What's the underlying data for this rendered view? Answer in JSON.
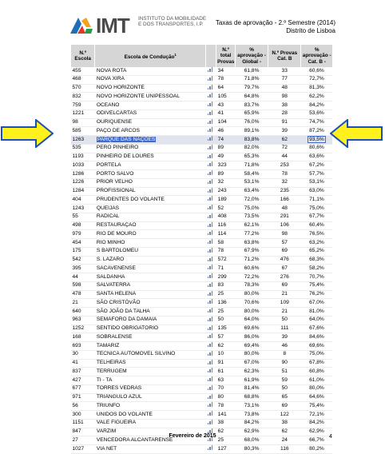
{
  "logo": {
    "text": "IMT",
    "subtitle": "INSTITUTO DA MOBILIDADE E DOS TRANSPORTES, I.P."
  },
  "header": {
    "line1": "Taxas de aprovação - 2.º Semestre (2014)",
    "line2": "Distrito de Lisboa"
  },
  "columns": {
    "num": "N.º Escola",
    "name": "Escola de Condução",
    "name_sup": "1",
    "total": "N.º total Provas",
    "apr": "% aprovação - Global -",
    "catb": "N.º Provas Cat. B",
    "pcb": "% aprovação - Cat. B -"
  },
  "rows": [
    {
      "num": "455",
      "name": "NOVA ROTA",
      "total": "34",
      "apr": "61,8%",
      "catb": "33",
      "pcb": "60,6%"
    },
    {
      "num": "468",
      "name": "NOVA XIRA",
      "total": "78",
      "apr": "71,8%",
      "catb": "77",
      "pcb": "72,7%"
    },
    {
      "num": "570",
      "name": "NOVO HORIZONTE",
      "total": "64",
      "apr": "79,7%",
      "catb": "48",
      "pcb": "81,3%"
    },
    {
      "num": "832",
      "name": "NOVO HORIZONTE UNIPESSOAL",
      "total": "105",
      "apr": "64,8%",
      "catb": "98",
      "pcb": "62,2%"
    },
    {
      "num": "759",
      "name": "OCEANO",
      "total": "43",
      "apr": "83,7%",
      "catb": "38",
      "pcb": "84,2%"
    },
    {
      "num": "1221",
      "name": "ODIVELCARTAS",
      "total": "41",
      "apr": "65,9%",
      "catb": "28",
      "pcb": "53,6%"
    },
    {
      "num": "98",
      "name": "OURIQUENSE",
      "total": "104",
      "apr": "76,0%",
      "catb": "91",
      "pcb": "74,7%"
    },
    {
      "num": "585",
      "name": "PAÇO DE ARCOS",
      "total": "46",
      "apr": "89,1%",
      "catb": "39",
      "pcb": "87,2%"
    },
    {
      "num": "1263",
      "name": "PARQUE DAS NAÇÕES",
      "total": "74",
      "apr": "83,8%",
      "catb": "62",
      "pcb": "93,5%",
      "highlight": true
    },
    {
      "num": "535",
      "name": "PERO PINHEIRO",
      "total": "89",
      "apr": "82,0%",
      "catb": "72",
      "pcb": "80,6%"
    },
    {
      "num": "1193",
      "name": "PINHEIRO DE LOURES",
      "total": "49",
      "apr": "65,3%",
      "catb": "44",
      "pcb": "63,6%"
    },
    {
      "num": "1033",
      "name": "PORTELA",
      "total": "323",
      "apr": "71,8%",
      "catb": "253",
      "pcb": "67,2%"
    },
    {
      "num": "1286",
      "name": "PORTO SALVO",
      "total": "89",
      "apr": "58,4%",
      "catb": "78",
      "pcb": "57,7%"
    },
    {
      "num": "1226",
      "name": "PRIOR VELHO",
      "total": "32",
      "apr": "53,1%",
      "catb": "32",
      "pcb": "53,1%"
    },
    {
      "num": "1284",
      "name": "PROFISSIONAL",
      "total": "243",
      "apr": "63,4%",
      "catb": "235",
      "pcb": "63,0%"
    },
    {
      "num": "404",
      "name": "PRUDENTES DO VOLANTE",
      "total": "189",
      "apr": "72,0%",
      "catb": "166",
      "pcb": "71,1%"
    },
    {
      "num": "1243",
      "name": "QUEIJAS",
      "total": "52",
      "apr": "75,0%",
      "catb": "48",
      "pcb": "75,0%"
    },
    {
      "num": "55",
      "name": "RADICAL",
      "total": "408",
      "apr": "73,5%",
      "catb": "291",
      "pcb": "67,7%"
    },
    {
      "num": "498",
      "name": "RESTAURAÇÃO",
      "total": "116",
      "apr": "62,1%",
      "catb": "106",
      "pcb": "60,4%"
    },
    {
      "num": "979",
      "name": "RIO DE MOURO",
      "total": "114",
      "apr": "77,2%",
      "catb": "98",
      "pcb": "76,5%"
    },
    {
      "num": "454",
      "name": "RIO MINHO",
      "total": "58",
      "apr": "63,8%",
      "catb": "57",
      "pcb": "63,2%"
    },
    {
      "num": "175",
      "name": "S BARTOLOMEU",
      "total": "78",
      "apr": "67,9%",
      "catb": "69",
      "pcb": "65,2%"
    },
    {
      "num": "542",
      "name": "S. LÁZARO",
      "total": "572",
      "apr": "71,2%",
      "catb": "476",
      "pcb": "68,3%"
    },
    {
      "num": "395",
      "name": "SACAVENENSE",
      "total": "71",
      "apr": "60,6%",
      "catb": "67",
      "pcb": "58,2%"
    },
    {
      "num": "44",
      "name": "SALDANHA",
      "total": "299",
      "apr": "72,2%",
      "catb": "276",
      "pcb": "70,7%"
    },
    {
      "num": "598",
      "name": "SALVATERRA",
      "total": "83",
      "apr": "78,3%",
      "catb": "69",
      "pcb": "75,4%"
    },
    {
      "num": "478",
      "name": "SANTA HELENA",
      "total": "25",
      "apr": "80,0%",
      "catb": "21",
      "pcb": "76,2%"
    },
    {
      "num": "21",
      "name": "SÃO CRISTÓVÃO",
      "total": "136",
      "apr": "70,6%",
      "catb": "109",
      "pcb": "67,0%"
    },
    {
      "num": "640",
      "name": "SÃO JOÃO DA TALHA",
      "total": "25",
      "apr": "80,0%",
      "catb": "21",
      "pcb": "81,0%"
    },
    {
      "num": "963",
      "name": "SEMÁFORO DA DAMAIA",
      "total": "50",
      "apr": "64,0%",
      "catb": "50",
      "pcb": "64,0%"
    },
    {
      "num": "1252",
      "name": "SENTIDO OBRIGATÓRIO",
      "total": "135",
      "apr": "69,6%",
      "catb": "111",
      "pcb": "67,6%"
    },
    {
      "num": "168",
      "name": "SOBRALENSE",
      "total": "57",
      "apr": "86,0%",
      "catb": "39",
      "pcb": "84,6%"
    },
    {
      "num": "693",
      "name": "TAMARIZ",
      "total": "62",
      "apr": "69,4%",
      "catb": "46",
      "pcb": "69,6%"
    },
    {
      "num": "30",
      "name": "TÉCNICA AUTOMÓVEL SILVINO",
      "total": "10",
      "apr": "80,0%",
      "catb": "8",
      "pcb": "75,0%"
    },
    {
      "num": "41",
      "name": "TELHEIRAS",
      "total": "91",
      "apr": "67,0%",
      "catb": "90",
      "pcb": "67,8%"
    },
    {
      "num": "837",
      "name": "TERRUGEM",
      "total": "61",
      "apr": "62,3%",
      "catb": "51",
      "pcb": "60,8%"
    },
    {
      "num": "427",
      "name": "TI - TA",
      "total": "63",
      "apr": "61,9%",
      "catb": "59",
      "pcb": "61,0%"
    },
    {
      "num": "677",
      "name": "TORRES VEDRAS",
      "total": "70",
      "apr": "81,4%",
      "catb": "50",
      "pcb": "80,0%"
    },
    {
      "num": "971",
      "name": "TRIÂNGULO AZUL",
      "total": "80",
      "apr": "68,8%",
      "catb": "65",
      "pcb": "64,6%"
    },
    {
      "num": "56",
      "name": "TRIUNFO",
      "total": "78",
      "apr": "73,1%",
      "catb": "69",
      "pcb": "75,4%"
    },
    {
      "num": "300",
      "name": "UNIDOS DO VOLANTE",
      "total": "141",
      "apr": "73,8%",
      "catb": "122",
      "pcb": "72,1%"
    },
    {
      "num": "1151",
      "name": "VALE FIGUEIRA",
      "total": "38",
      "apr": "84,2%",
      "catb": "38",
      "pcb": "84,2%"
    },
    {
      "num": "847",
      "name": "VARZIM",
      "total": "62",
      "apr": "62,9%",
      "catb": "62",
      "pcb": "62,9%"
    },
    {
      "num": "27",
      "name": "VENCEDORA ALCANTARENSE",
      "total": "25",
      "apr": "68,0%",
      "catb": "24",
      "pcb": "66,7%"
    },
    {
      "num": "1027",
      "name": "VIA NET",
      "total": "127",
      "apr": "80,3%",
      "catb": "116",
      "pcb": "80,2%"
    }
  ],
  "footer": {
    "date": "Fevereiro de 2015",
    "page": "4"
  },
  "colors": {
    "header_bg": "#d6d6d6",
    "highlight": "#3d6bd0",
    "arrow_fill": "#fff21c",
    "arrow_stroke": "#1d4fb8"
  }
}
